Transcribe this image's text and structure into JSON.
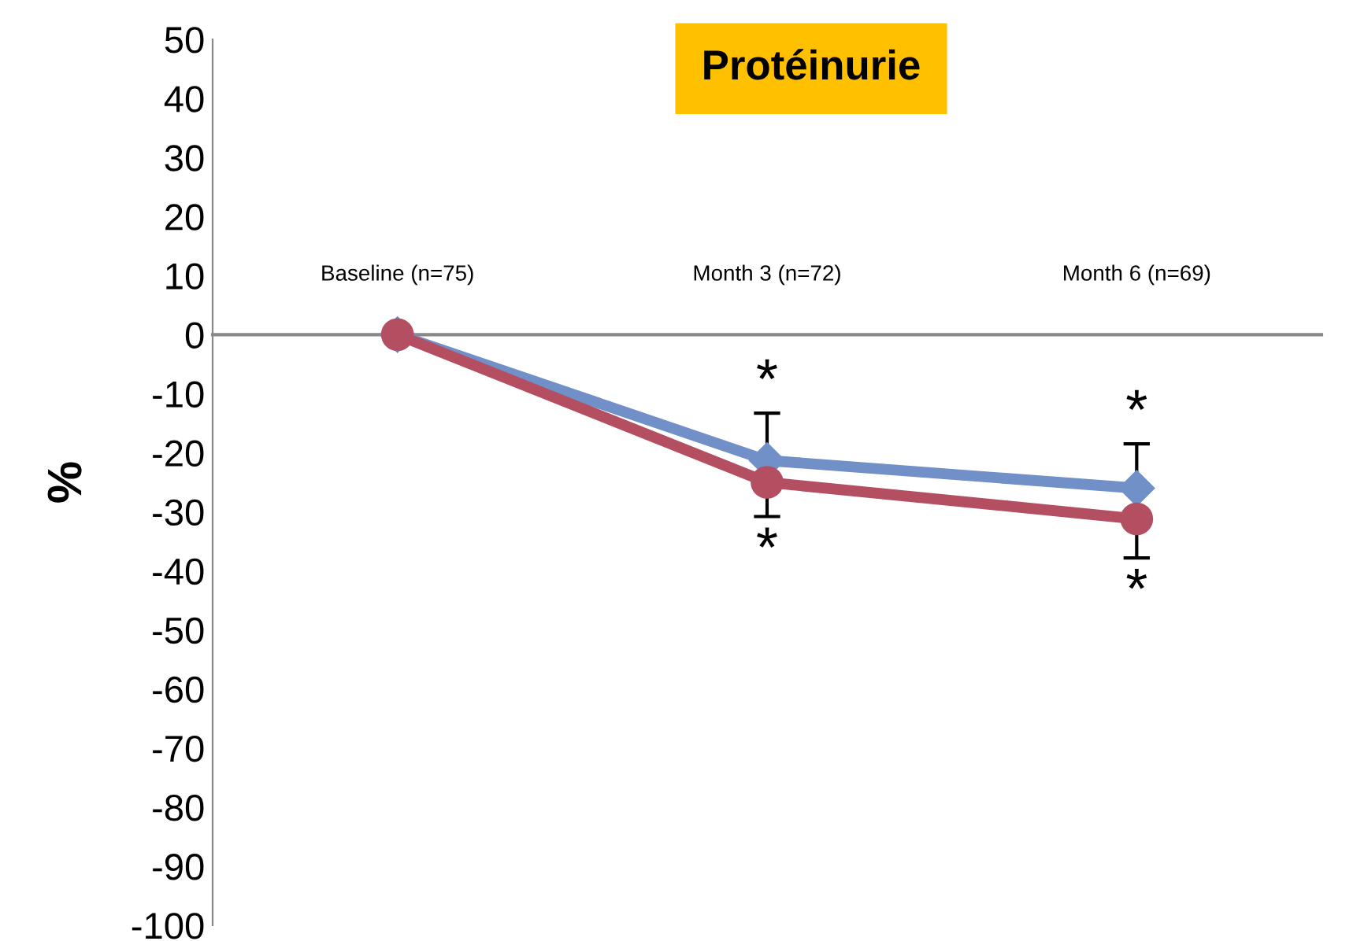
{
  "chart_data": {
    "type": "line",
    "title": "Protéinurie",
    "ylabel": "%",
    "categories": [
      "Baseline (n=75)",
      "Month 3 (n=72)",
      "Month 6 (n=69)"
    ],
    "series": [
      {
        "color": "#7190c8",
        "marker": "diamond",
        "values": [
          0,
          -21.3,
          -26
        ],
        "errors": [
          null,
          [
            -21.3,
            -13.3
          ],
          [
            -26,
            -18.5
          ]
        ]
      },
      {
        "color": "#b44f62",
        "marker": "circle",
        "values": [
          0,
          -25,
          -31.2
        ],
        "errors": [
          null,
          [
            -30.8,
            -25
          ],
          [
            -37.8,
            -31.2
          ]
        ]
      }
    ],
    "annotations": [
      "*",
      "*",
      "*",
      "*"
    ],
    "ylim": [
      -100,
      50
    ],
    "yticks": [
      -100,
      -90,
      -80,
      -70,
      -60,
      -50,
      -40,
      -30,
      -20,
      -10,
      0,
      10,
      20,
      30,
      40,
      50
    ],
    "grid": false,
    "legend": false,
    "line_style": "solid"
  }
}
